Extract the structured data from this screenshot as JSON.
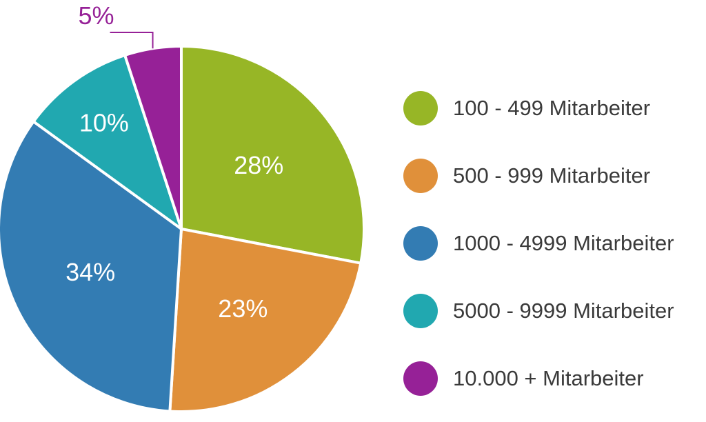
{
  "chart_data": {
    "type": "pie",
    "title": "",
    "categories": [
      "100 - 499 Mitarbeiter",
      "500 - 999 Mitarbeiter",
      "1000 - 4999 Mitarbeiter",
      "5000 - 9999 Mitarbeiter",
      "10.000 + Mitarbeiter"
    ],
    "values": [
      28,
      23,
      34,
      10,
      5
    ],
    "labels": [
      "28%",
      "23%",
      "34%",
      "10%",
      "5%"
    ],
    "colors": [
      "#97b626",
      "#e0903a",
      "#337cb3",
      "#21a8b0",
      "#962197"
    ],
    "legend_position": "right"
  }
}
